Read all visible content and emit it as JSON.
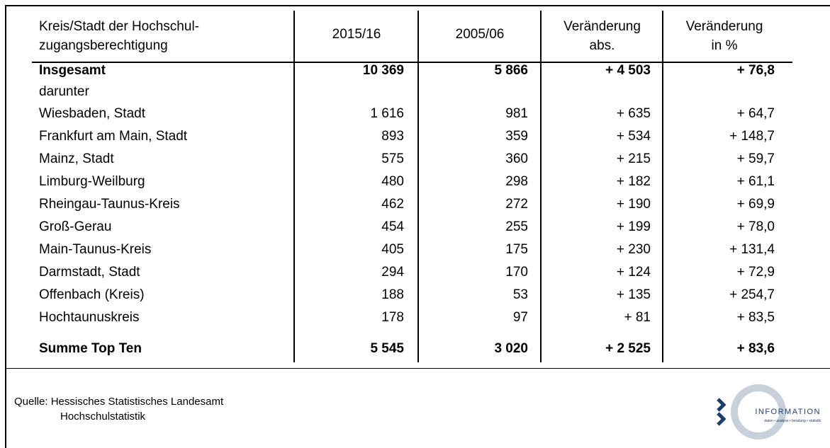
{
  "table": {
    "header": [
      [
        "Kreis/Stadt der Hochschul-",
        "zugangsberechtigung"
      ],
      [
        "2015/16"
      ],
      [
        "2005/06"
      ],
      [
        "Veränderung",
        "abs."
      ],
      [
        "Veränderung",
        "in %"
      ]
    ],
    "rows": [
      [
        "Insgesamt",
        "10 369",
        "5 866",
        "+ 4 503",
        "+ 76,8"
      ],
      [
        "darunter"
      ],
      [
        "Wiesbaden, Stadt",
        "1 616",
        "981",
        "+ 635",
        "+ 64,7"
      ],
      [
        "Frankfurt am Main, Stadt",
        "893",
        "359",
        "+ 534",
        "+ 148,7"
      ],
      [
        "Mainz, Stadt",
        "575",
        "360",
        "+ 215",
        "+ 59,7"
      ],
      [
        "Limburg-Weilburg",
        "480",
        "298",
        "+ 182",
        "+ 61,1"
      ],
      [
        "Rheingau-Taunus-Kreis",
        "462",
        "272",
        "+ 190",
        "+ 69,9"
      ],
      [
        "Groß-Gerau",
        "454",
        "255",
        "+ 199",
        "+ 78,0"
      ],
      [
        "Main-Taunus-Kreis",
        "405",
        "175",
        "+ 230",
        "+ 131,4"
      ],
      [
        "Darmstadt, Stadt",
        "294",
        "170",
        "+ 124",
        "+ 72,9"
      ],
      [
        "Offenbach (Kreis)",
        "188",
        "53",
        "+ 135",
        "+ 254,7"
      ],
      [
        "Hochtaunuskreis",
        "178",
        "97",
        "+ 81",
        "+ 83,5"
      ],
      [
        "Summe Top Ten",
        "5 545",
        "3 020",
        "+ 2 525",
        "+ 83,6"
      ]
    ]
  },
  "footer": {
    "source": [
      "Quelle: Hessisches Statistisches Landesamt",
      "Hochschulstatistik"
    ]
  },
  "logo": {
    "name": "INFORMATION",
    "tagline": "daten • analyse • beratung • statistik"
  }
}
